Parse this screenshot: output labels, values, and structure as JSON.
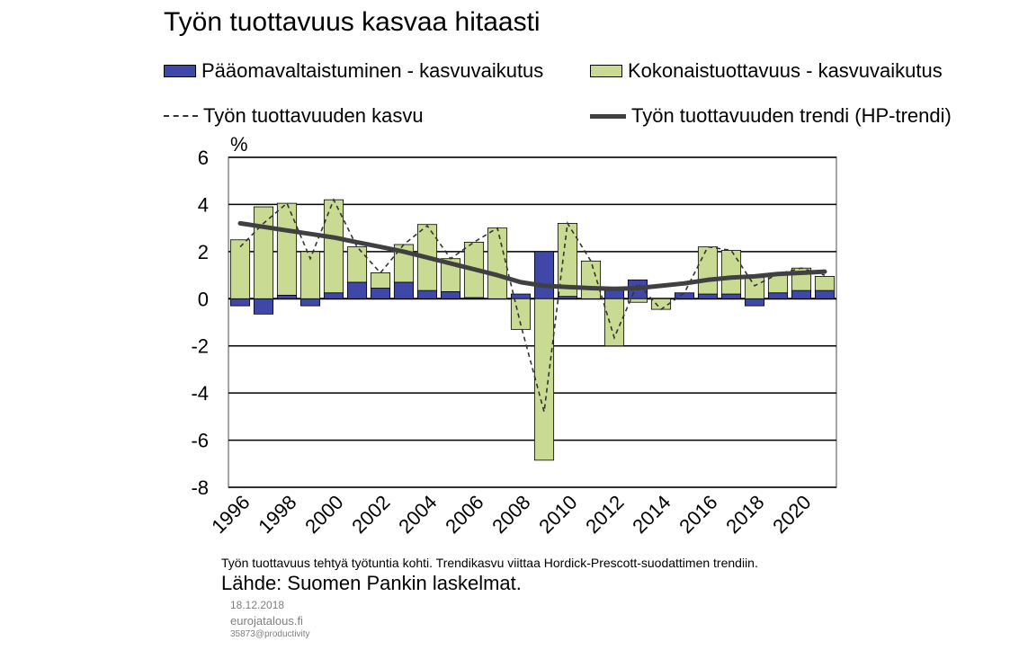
{
  "chart_data": {
    "type": "bar",
    "title": "Työn tuottavuus kasvaa hitaasti",
    "ylabel": "%",
    "ylim": [
      -8,
      6
    ],
    "yticks": [
      6,
      4,
      2,
      0,
      -2,
      -4,
      -6,
      -8
    ],
    "x_tick_labels": [
      "1996",
      "1998",
      "2000",
      "2002",
      "2004",
      "2006",
      "2008",
      "2010",
      "2012",
      "2014",
      "2016",
      "2018",
      "2020"
    ],
    "x": [
      1996,
      1997,
      1998,
      1999,
      2000,
      2001,
      2002,
      2003,
      2004,
      2005,
      2006,
      2007,
      2008,
      2009,
      2010,
      2011,
      2012,
      2013,
      2014,
      2015,
      2016,
      2017,
      2018,
      2019,
      2020,
      2021
    ],
    "grid": true,
    "legend_position": "top",
    "series": [
      {
        "name": "Pääomavaltaistuminen - kasvuvaikutus",
        "type": "bar",
        "color": "#3F48A8",
        "values": [
          -0.3,
          -0.65,
          0.15,
          -0.3,
          0.25,
          0.7,
          0.45,
          0.7,
          0.35,
          0.3,
          0.05,
          0.0,
          0.2,
          2.0,
          0.1,
          0.0,
          0.35,
          0.8,
          0.0,
          0.25,
          0.2,
          0.2,
          -0.3,
          0.25,
          0.35,
          0.35
        ]
      },
      {
        "name": "Kokonaistuottavuus - kasvuvaikutus",
        "type": "bar",
        "color": "#C9DB92",
        "values": [
          2.5,
          3.9,
          3.9,
          2.0,
          3.95,
          1.5,
          0.65,
          1.6,
          2.8,
          1.4,
          2.35,
          3.0,
          -1.3,
          -6.85,
          3.1,
          1.6,
          -2.0,
          -0.15,
          -0.45,
          0.0,
          2.0,
          1.85,
          0.9,
          0.8,
          0.95,
          0.6
        ]
      },
      {
        "name": "Työn tuottavuuden kasvu",
        "type": "line",
        "style": "dashed",
        "color": "#333333",
        "values": [
          2.2,
          3.2,
          4.05,
          1.7,
          4.2,
          2.2,
          1.1,
          2.3,
          3.1,
          1.7,
          2.4,
          3.0,
          -1.1,
          -4.8,
          3.2,
          1.6,
          -1.65,
          0.65,
          -0.45,
          0.25,
          2.2,
          2.05,
          0.55,
          1.05,
          1.3,
          1.0
        ]
      },
      {
        "name": "Työn tuottavuuden trendi (HP-trendi)",
        "type": "line",
        "style": "solid",
        "color": "#404040",
        "values": [
          3.2,
          3.05,
          2.9,
          2.75,
          2.6,
          2.4,
          2.2,
          2.0,
          1.75,
          1.5,
          1.25,
          1.0,
          0.7,
          0.55,
          0.5,
          0.45,
          0.42,
          0.45,
          0.55,
          0.65,
          0.8,
          0.9,
          0.95,
          1.05,
          1.1,
          1.15
        ]
      }
    ],
    "note": "Työn tuottavuus tehtyä työtuntia kohti. Trendikasvu viittaa Hordick-Prescott-suodattimen trendiin.",
    "source": "Lähde: Suomen Pankin laskelmat."
  },
  "footer": {
    "date": "18.12.2018",
    "site": "eurojatalous.fi",
    "code": "35873@productivity"
  }
}
